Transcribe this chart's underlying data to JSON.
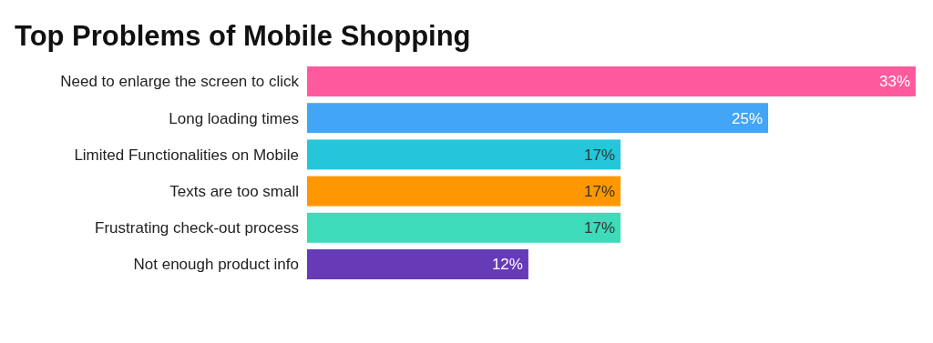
{
  "chart_data": {
    "type": "bar",
    "orientation": "horizontal",
    "title": "Top Problems of Mobile Shopping",
    "categories": [
      "Need to enlarge the screen to click",
      "Long loading times",
      "Limited Functionalities on Mobile",
      "Texts are too small",
      "Frustrating check-out process",
      "Not enough product info"
    ],
    "values": [
      33,
      25,
      17,
      17,
      17,
      12
    ],
    "colors": [
      "#ff5a9e",
      "#42a5f5",
      "#26c6da",
      "#ff9800",
      "#3ddbb9",
      "#673ab7"
    ],
    "value_labels": [
      "33%",
      "25%",
      "17%",
      "17%",
      "17%",
      "12%"
    ],
    "tick_labels": "y"
  }
}
